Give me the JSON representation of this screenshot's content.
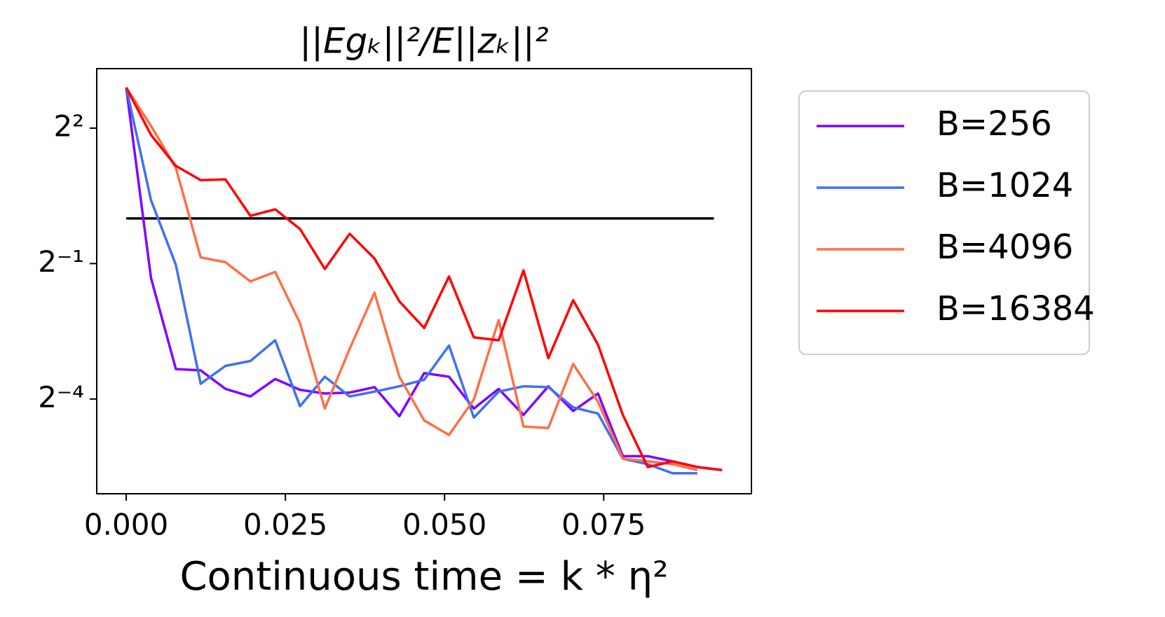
{
  "chart_data": {
    "type": "line",
    "title": "||Egₖ||²/E||zₖ||²",
    "x_label": "Continuous time = k * η²",
    "x": [
      0,
      0.0039,
      0.0078,
      0.0117,
      0.0156,
      0.0195,
      0.0234,
      0.0273,
      0.0312,
      0.0351,
      0.039,
      0.0429,
      0.0468,
      0.0507,
      0.0546,
      0.0585,
      0.0624,
      0.0663,
      0.0702,
      0.0741,
      0.078,
      0.0819,
      0.0858,
      0.0897,
      0.0936
    ],
    "series": [
      {
        "name": "B=256",
        "color": "#8000ff",
        "values": [
          7.46,
          0.4,
          0.099,
          0.097,
          0.073,
          0.065,
          0.085,
          0.072,
          0.068,
          0.069,
          0.075,
          0.048,
          0.093,
          0.088,
          0.054,
          0.073,
          0.049,
          0.076,
          0.052,
          0.068,
          0.026,
          0.026,
          0.024,
          0.022,
          0.021
        ]
      },
      {
        "name": "B=1024",
        "color": "#3f6ff5",
        "values": [
          7.46,
          1.32,
          0.49,
          0.079,
          0.104,
          0.112,
          0.154,
          0.056,
          0.088,
          0.065,
          0.07,
          0.076,
          0.084,
          0.142,
          0.047,
          0.07,
          0.076,
          0.075,
          0.055,
          0.05,
          0.025,
          0.023,
          0.02,
          0.02,
          null
        ]
      },
      {
        "name": "B=4096",
        "color": "#ff7045",
        "values": [
          7.46,
          4.14,
          2.17,
          0.55,
          0.51,
          0.38,
          0.44,
          0.2,
          0.054,
          0.135,
          0.32,
          0.088,
          0.045,
          0.036,
          0.062,
          0.21,
          0.041,
          0.04,
          0.107,
          0.06,
          0.025,
          0.024,
          0.023,
          0.021,
          null
        ]
      },
      {
        "name": "B=16384",
        "color": "#ff0000",
        "values": [
          7.46,
          3.6,
          2.24,
          1.8,
          1.82,
          1.04,
          1.15,
          0.85,
          0.46,
          0.79,
          0.54,
          0.28,
          0.186,
          0.41,
          0.161,
          0.154,
          0.45,
          0.117,
          0.285,
          0.144,
          0.049,
          0.022,
          0.024,
          0.022,
          0.021
        ]
      }
    ],
    "hline": {
      "y": 1,
      "xmin": 0,
      "xmax": 0.0923,
      "color": "#000000"
    },
    "xlim": [
      -0.00463,
      0.0982
    ],
    "xticks": [
      {
        "value": 0,
        "label": "0.000"
      },
      0.025,
      {
        "value": 0.05,
        "label": "0.050"
      },
      0.075
    ],
    "ylim": [
      0.0146,
      9.97
    ],
    "y_log_base": 2,
    "yticks": [
      {
        "value": 4,
        "label": "2²"
      },
      {
        "value": 0.5,
        "label": "2⁻¹"
      },
      {
        "value": 0.0625,
        "label": "2⁻⁴"
      }
    ],
    "legend": "outside-right"
  }
}
